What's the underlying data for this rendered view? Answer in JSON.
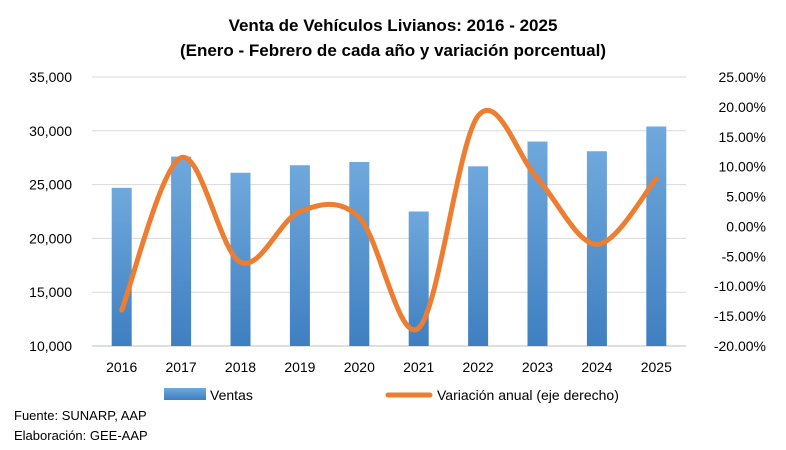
{
  "chart_data": {
    "type": "bar",
    "title": "Venta de Vehículos Livianos: 2016 - 2025",
    "subtitle": "(Enero - Febrero de cada año y variación porcentual)",
    "categories": [
      "2016",
      "2017",
      "2018",
      "2019",
      "2020",
      "2021",
      "2022",
      "2023",
      "2024",
      "2025"
    ],
    "series": [
      {
        "name": "Ventas",
        "type": "bar",
        "axis": "left",
        "color": "#5b9bd5",
        "values": [
          24700,
          27600,
          26100,
          26800,
          27100,
          22500,
          26700,
          29000,
          28100,
          30400
        ]
      },
      {
        "name": "Variación anual (eje derecho)",
        "type": "line",
        "axis": "right",
        "color": "#ed7d31",
        "values": [
          -14.0,
          11.5,
          -6.0,
          2.5,
          1.5,
          -17.0,
          18.5,
          8.0,
          -3.0,
          8.0
        ]
      }
    ],
    "left_axis": {
      "ylim": [
        10000,
        35000
      ],
      "ticks": [
        "10,000",
        "15,000",
        "20,000",
        "25,000",
        "30,000",
        "35,000"
      ]
    },
    "right_axis": {
      "ylim": [
        -20,
        25
      ],
      "ticks": [
        "-20.00%",
        "-15.00%",
        "-10.00%",
        "-5.00%",
        "0.00%",
        "5.00%",
        "10.00%",
        "15.00%",
        "20.00%",
        "25.00%"
      ]
    },
    "grid": true,
    "legend_position": "bottom"
  },
  "notes": {
    "source": "Fuente: SUNARP, AAP",
    "prepared": "Elaboración: GEE-AAP"
  }
}
